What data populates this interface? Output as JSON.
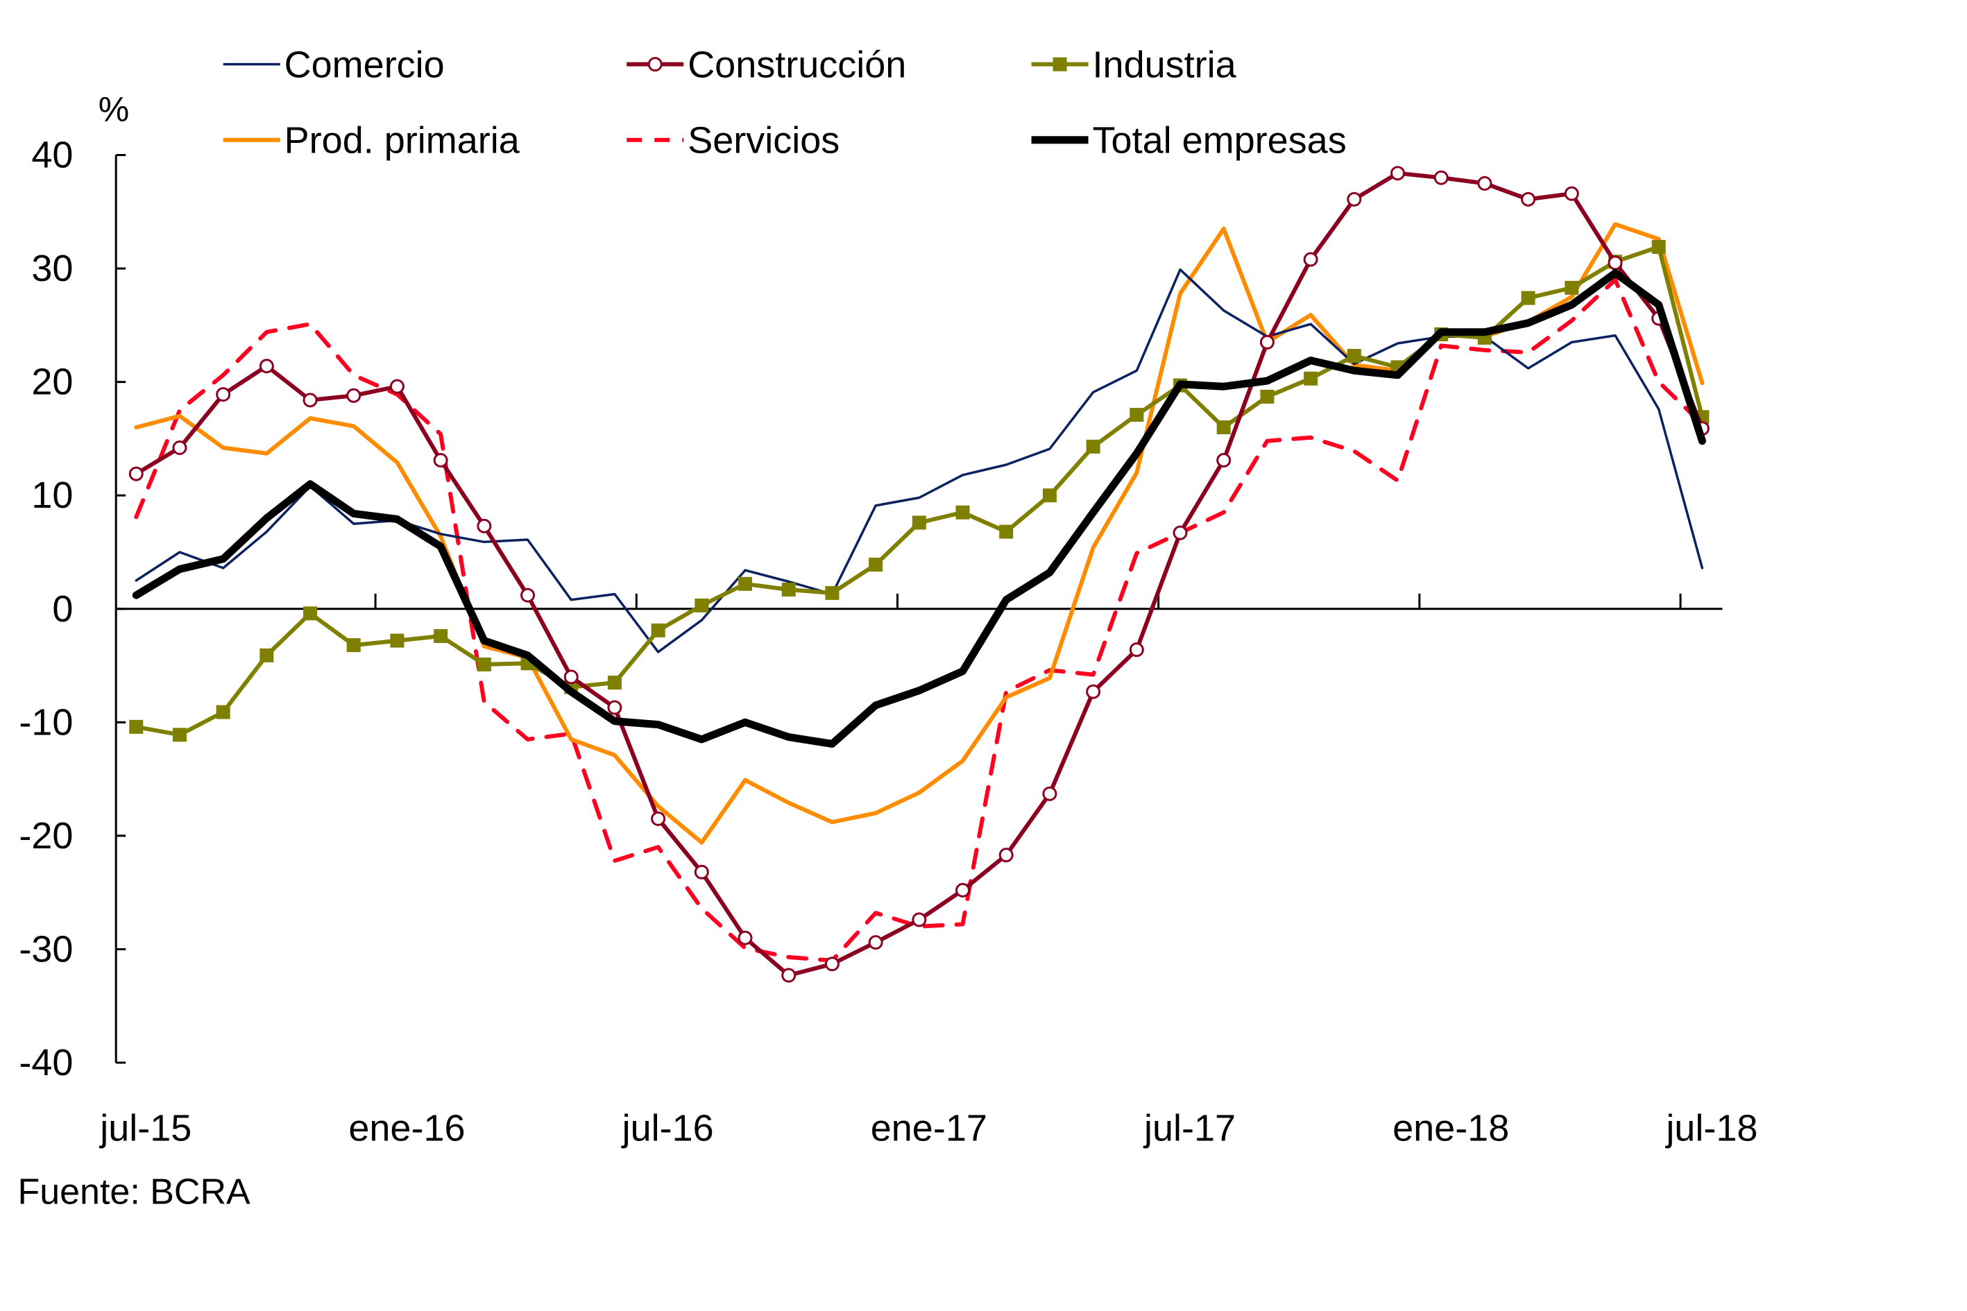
{
  "chart_data": {
    "type": "line",
    "title": "",
    "xlabel": "",
    "ylabel": "%",
    "ylim": [
      -40,
      40
    ],
    "yticks": [
      -40,
      -30,
      -20,
      -10,
      0,
      10,
      20,
      30,
      40
    ],
    "ytick_labels": [
      "-40",
      "-30",
      "-20",
      "-10",
      "0",
      "10",
      "20",
      "30",
      "40"
    ],
    "x": [
      "jul-15",
      "ago-15",
      "sep-15",
      "oct-15",
      "nov-15",
      "dic-15",
      "ene-16",
      "feb-16",
      "mar-16",
      "abr-16",
      "may-16",
      "jun-16",
      "jul-16",
      "ago-16",
      "sep-16",
      "oct-16",
      "nov-16",
      "dic-16",
      "ene-17",
      "feb-17",
      "mar-17",
      "abr-17",
      "may-17",
      "jun-17",
      "jul-17",
      "ago-17",
      "sep-17",
      "oct-17",
      "nov-17",
      "dic-17",
      "ene-18",
      "feb-18",
      "mar-18",
      "abr-18",
      "may-18",
      "jun-18",
      "jul-18"
    ],
    "xtick_labels": [
      "jul-15",
      "ene-16",
      "jul-16",
      "ene-17",
      "jul-17",
      "ene-18",
      "jul-18"
    ],
    "xtick_indices": [
      0,
      6,
      12,
      18,
      24,
      30,
      36
    ],
    "grid": false,
    "legend_position": "top",
    "source": "Fuente: BCRA",
    "series": [
      {
        "name": "Comercio",
        "color": "#0b2160",
        "style": "solid-thin",
        "marker": "none",
        "values": [
          2.5,
          5.0,
          3.6,
          6.8,
          10.8,
          7.5,
          7.8,
          6.6,
          5.9,
          6.1,
          0.8,
          1.3,
          -3.8,
          -1.0,
          3.4,
          2.4,
          1.3,
          9.1,
          9.8,
          11.8,
          12.7,
          14.1,
          19.1,
          21.0,
          29.9,
          26.3,
          24.0,
          25.1,
          21.6,
          23.4,
          24.0,
          24.0,
          21.2,
          23.5,
          24.1,
          17.6,
          3.6
        ]
      },
      {
        "name": "Construcción",
        "color": "#8b0020",
        "style": "solid",
        "marker": "open-circle",
        "values": [
          11.9,
          14.2,
          18.9,
          21.4,
          18.4,
          18.8,
          19.6,
          13.1,
          7.3,
          1.2,
          -6.0,
          -8.7,
          -18.5,
          -23.2,
          -29.0,
          -32.3,
          -31.3,
          -29.4,
          -27.4,
          -24.8,
          -21.7,
          -16.3,
          -7.3,
          -3.6,
          6.7,
          13.1,
          23.5,
          30.8,
          36.1,
          38.4,
          38.0,
          37.5,
          36.1,
          36.6,
          30.5,
          25.6,
          15.9
        ]
      },
      {
        "name": "Industria",
        "color": "#7f7f00",
        "style": "solid",
        "marker": "square",
        "values": [
          -10.4,
          -11.1,
          -9.1,
          -4.1,
          -0.4,
          -3.2,
          -2.8,
          -2.4,
          -4.9,
          -4.8,
          -6.9,
          -6.5,
          -1.9,
          0.3,
          2.2,
          1.7,
          1.4,
          3.9,
          7.6,
          8.5,
          6.8,
          10.0,
          14.3,
          17.1,
          19.7,
          16.0,
          18.7,
          20.3,
          22.3,
          21.3,
          24.2,
          23.9,
          27.4,
          28.3,
          30.6,
          31.9,
          16.9
        ]
      },
      {
        "name": "Prod. primaria",
        "color": "#ff8c00",
        "style": "solid",
        "marker": "none",
        "values": [
          16.0,
          17.0,
          14.2,
          13.7,
          16.8,
          16.1,
          12.9,
          6.4,
          -3.3,
          -4.3,
          -11.5,
          -12.9,
          -17.4,
          -20.6,
          -15.1,
          -17.1,
          -18.8,
          -18.0,
          -16.2,
          -13.4,
          -7.8,
          -6.1,
          5.4,
          12.0,
          27.8,
          33.5,
          23.5,
          25.9,
          21.5,
          21.0,
          24.2,
          24.0,
          25.3,
          27.5,
          33.9,
          32.6,
          19.9
        ]
      },
      {
        "name": "Servicios",
        "color": "#ff0020",
        "style": "dashed",
        "marker": "none",
        "values": [
          8.1,
          17.5,
          20.6,
          24.4,
          25.1,
          20.6,
          18.9,
          15.4,
          -8.2,
          -11.5,
          -11.0,
          -22.2,
          -21.0,
          -26.4,
          -29.9,
          -30.7,
          -31.0,
          -26.8,
          -28.0,
          -27.8,
          -7.3,
          -5.4,
          -5.8,
          4.9,
          6.7,
          8.5,
          14.8,
          15.1,
          13.9,
          11.3,
          23.2,
          22.8,
          22.6,
          25.4,
          29.0,
          20.0,
          16.3
        ]
      },
      {
        "name": "Total empresas",
        "color": "#000000",
        "style": "solid-thick",
        "marker": "none",
        "values": [
          1.2,
          3.5,
          4.4,
          8.0,
          11.0,
          8.4,
          7.9,
          5.5,
          -2.8,
          -4.1,
          -7.3,
          -9.9,
          -10.2,
          -11.5,
          -10.0,
          -11.3,
          -11.9,
          -8.5,
          -7.2,
          -5.5,
          0.8,
          3.2,
          8.5,
          13.7,
          19.8,
          19.6,
          20.1,
          21.9,
          21.0,
          20.6,
          24.4,
          24.4,
          25.2,
          26.8,
          29.6,
          26.8,
          14.8
        ]
      }
    ]
  }
}
